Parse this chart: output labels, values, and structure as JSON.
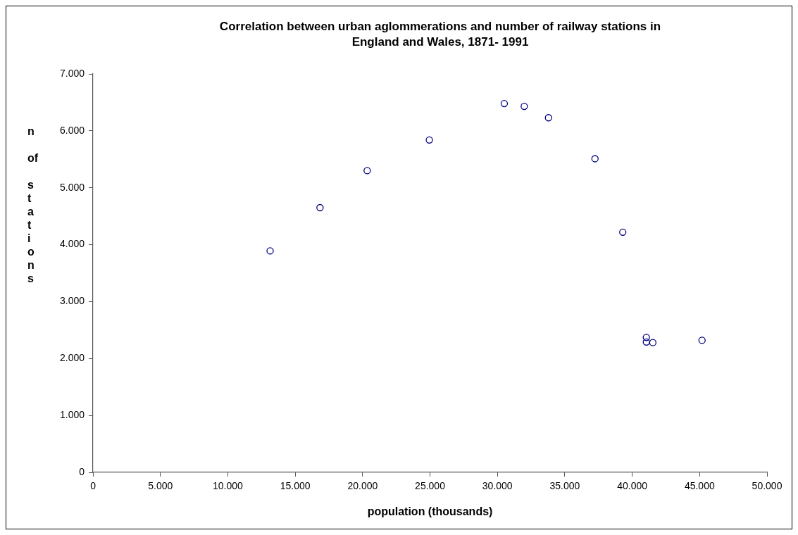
{
  "chart_data": {
    "type": "scatter",
    "title": "Correlation between urban aglommerations and number of railway stations in England and Wales, 1871- 1991",
    "xlabel": "population (thousands)",
    "ylabel": "n of stations",
    "x": [
      13140,
      16840,
      20340,
      24950,
      30510,
      31990,
      33790,
      37240,
      39300,
      41050,
      41050,
      41530,
      45180
    ],
    "series": [
      {
        "color": "#000080",
        "values": [
          3890,
          4650,
          5300,
          5840,
          6480,
          6430,
          6230,
          5510,
          4220,
          2370,
          2290,
          2280,
          2320
        ]
      }
    ],
    "xlim": [
      0,
      50000
    ],
    "ylim": [
      0,
      7000
    ],
    "xticks": [
      0,
      {
        "value": 5000,
        "label": "5.000"
      },
      {
        "value": 10000,
        "label": "10.000"
      },
      {
        "value": 15000,
        "label": "15.000"
      },
      {
        "value": 20000,
        "label": "20.000"
      },
      {
        "value": 25000,
        "label": "25.000"
      },
      {
        "value": 30000,
        "label": "30.000"
      },
      {
        "value": 35000,
        "label": "35.000"
      },
      {
        "value": 40000,
        "label": "40.000"
      },
      {
        "value": 45000,
        "label": "45.000"
      },
      {
        "value": 50000,
        "label": "50.000"
      }
    ],
    "yticks": [
      0,
      {
        "value": 1000,
        "label": "1.000"
      },
      {
        "value": 2000,
        "label": "2.000"
      },
      {
        "value": 3000,
        "label": "3.000"
      },
      {
        "value": 4000,
        "label": "4.000"
      },
      {
        "value": 5000,
        "label": "5.000"
      },
      {
        "value": 6000,
        "label": "6.000"
      },
      {
        "value": 7000,
        "label": "7.000"
      }
    ],
    "grid": false,
    "legend": false,
    "marker": "circle"
  }
}
